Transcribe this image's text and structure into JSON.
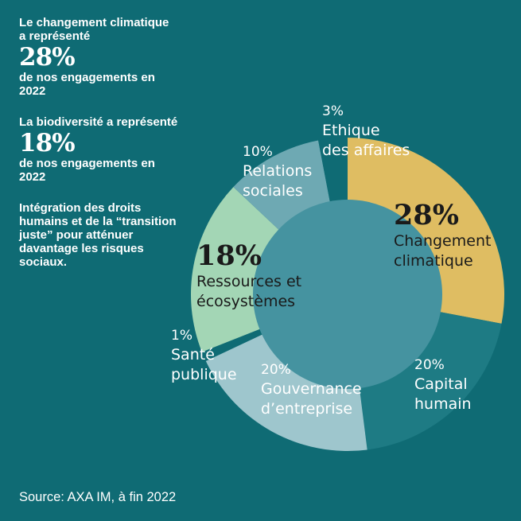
{
  "sidebar": {
    "climate": {
      "pre": "Le changement climatique a représenté",
      "value": "28%",
      "post": "de nos engagements en 2022"
    },
    "biodiversity": {
      "pre": "La biodiversité a représenté",
      "value": "18%",
      "post": "de nos engagements en 2022"
    },
    "note": "Intégration des droits humains et de la “transition juste” pour atténuer davantage les risques sociaux."
  },
  "source": "Source: AXA IM, à fin 2022",
  "chart_data": {
    "type": "pie",
    "title": "",
    "slices": [
      {
        "label": "Changement climatique",
        "pct_label": "28%",
        "value": 28,
        "color": "#dfbd62"
      },
      {
        "label": "Capital humain",
        "pct_label": "20%",
        "value": 20,
        "color": "#1e7b84"
      },
      {
        "label": "Gouvernance d’entreprise",
        "pct_label": "20%",
        "value": 20,
        "color": "#9ec6cd"
      },
      {
        "label": "Santé publique",
        "pct_label": "1%",
        "value": 1,
        "color": "#0f6b74"
      },
      {
        "label": "Ressources et écosystèmes",
        "pct_label": "18%",
        "value": 18,
        "color": "#a3d6b5"
      },
      {
        "label": "Relations sociales",
        "pct_label": "10%",
        "value": 10,
        "color": "#6ea9b3"
      },
      {
        "label": "Ethique des affaires",
        "pct_label": "3%",
        "value": 3,
        "color": "#0f6b74"
      }
    ],
    "center_color": "#4593a0",
    "legend": "none"
  }
}
